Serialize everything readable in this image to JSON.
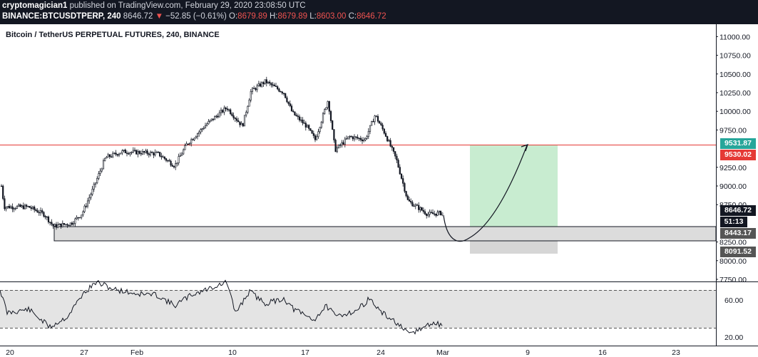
{
  "header": {
    "author": "cryptomagician1",
    "published": " published on TradingView.com, February 29, 2020 23:08:50 UTC",
    "symbol": "BINANCE:BTCUSDTPERP, 240",
    "last": "8646.72",
    "change_arrow": "▼",
    "change": "−52.85 (−0.61%)",
    "o_label": "O:",
    "o": "8679.89",
    "h_label": "H:",
    "h": "8679.89",
    "l_label": "L:",
    "l": "8603.00",
    "c_label": "C:",
    "c": "8646.72"
  },
  "chart": {
    "title": "Bitcoin / TetherUS PERPETUAL FUTURES, 240, BINANCE",
    "price_ticks": [
      "11000.00",
      "10750.00",
      "10500.00",
      "10250.00",
      "10000.00",
      "9750.00",
      "9250.00",
      "9000.00",
      "8750.00",
      "8250.00",
      "8000.00",
      "7750.00"
    ],
    "rsi_ticks": [
      "60.00",
      "20.00"
    ],
    "time_ticks": [
      "20",
      "27",
      "Feb",
      "10",
      "17",
      "24",
      "Mar",
      "9",
      "16",
      "23"
    ],
    "tags": {
      "target": "9531.87",
      "resistance": "9530.02",
      "last": "8646.72",
      "countdown": "51:13",
      "support": "8443.17",
      "stop": "8091.52"
    },
    "colors": {
      "header_bg": "#131722",
      "down": "#ef5350",
      "target_tag": "#26a69a",
      "resistance_line": "#e53935",
      "profit_zone": "#c8ecd0",
      "loss_zone": "#d6d6d6",
      "support_zone": "#dcdcdc"
    }
  }
}
